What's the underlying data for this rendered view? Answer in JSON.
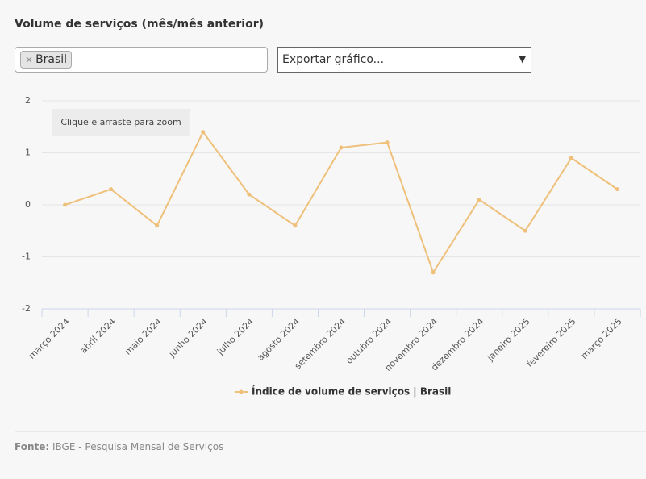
{
  "header": {
    "title": "Volume de serviços (mês/mês anterior)"
  },
  "filter": {
    "tag_remove": "×",
    "tag": "Brasil"
  },
  "export": {
    "placeholder": "Exportar gráfico..."
  },
  "zoom_hint": "Clique e arraste para zoom",
  "chart_data": {
    "type": "line",
    "categories": [
      "março 2024",
      "abril 2024",
      "maio 2024",
      "junho 2024",
      "julho 2024",
      "agosto 2024",
      "setembro 2024",
      "outubro 2024",
      "novembro 2024",
      "dezembro 2024",
      "janeiro 2025",
      "fevereiro 2025",
      "março 2025"
    ],
    "series": [
      {
        "name": "Índice de volume de serviços | Brasil",
        "color": "#efc07a",
        "values": [
          0,
          0.3,
          -0.4,
          1.4,
          0.2,
          -0.4,
          1.1,
          1.2,
          -1.3,
          0.1,
          -0.5,
          0.9,
          0.3
        ]
      }
    ],
    "ylim": [
      -2,
      2
    ],
    "yticks": [
      -2,
      -1,
      0,
      1,
      2
    ],
    "grid": true
  },
  "footer": {
    "label": "Fonte:",
    "source": "IBGE - Pesquisa Mensal de Serviços"
  }
}
